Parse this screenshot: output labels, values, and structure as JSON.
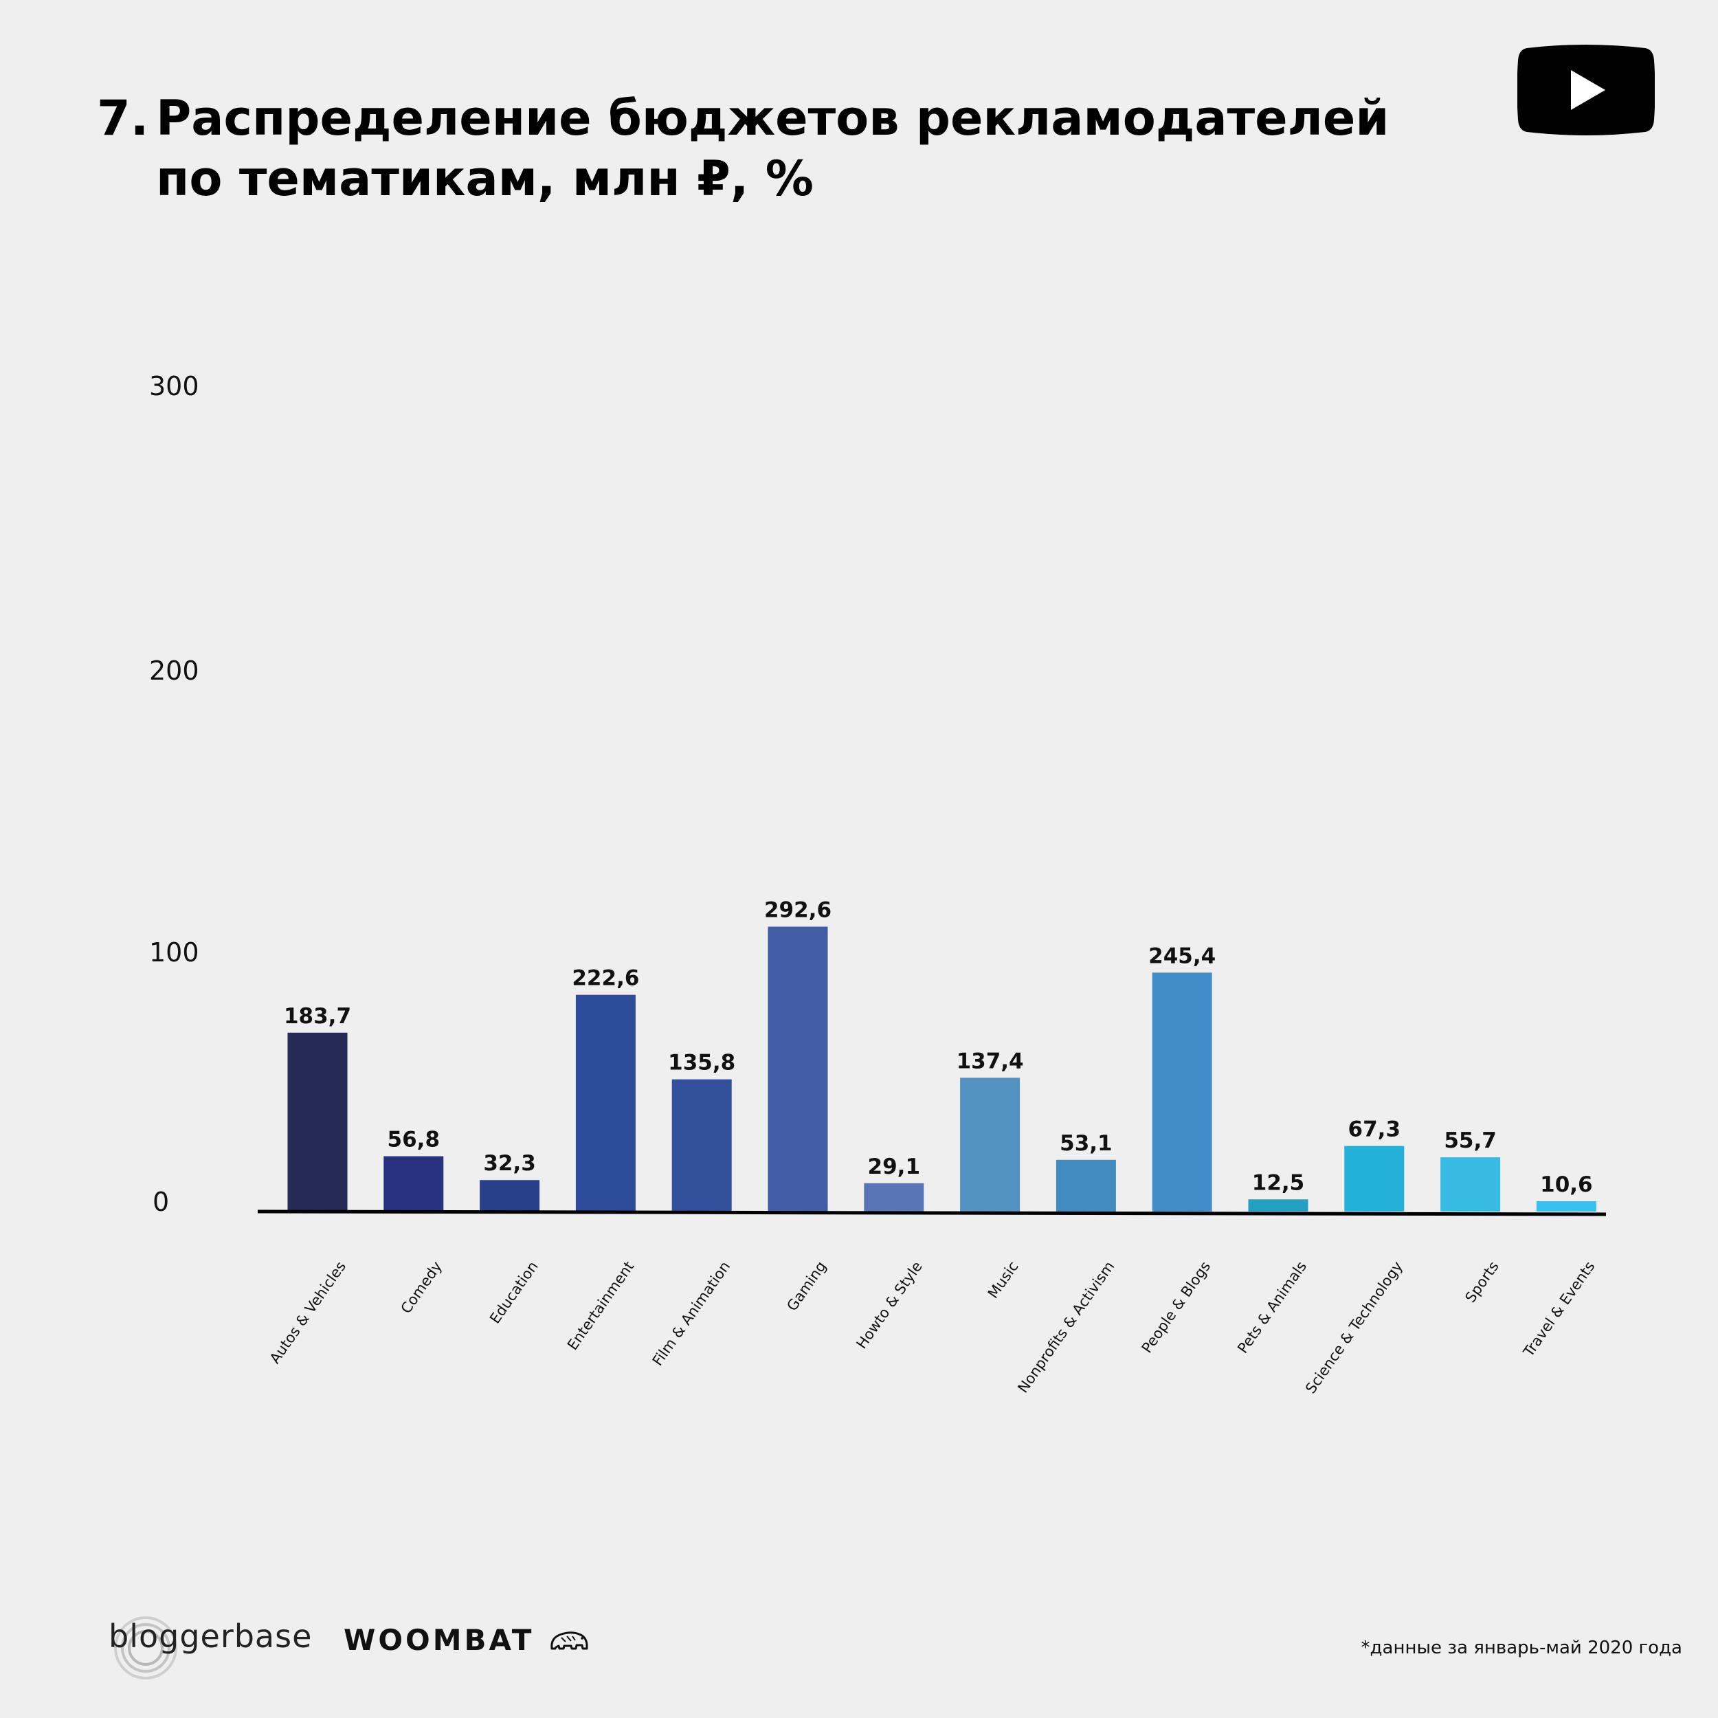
{
  "title": {
    "number": "7.",
    "line1": "Распределение бюджетов рекламодателей",
    "line2": "по тематикам, млн ₽, %"
  },
  "icons": {
    "top_right": "youtube-play-icon",
    "footer_logo_1": "bloggerbase-logo",
    "footer_logo_2": "woombat-logo",
    "woombat_mark": "wombat-animal-icon"
  },
  "logos": {
    "bloggerbase": "bloggerbase",
    "woombat": "WOOMBAT"
  },
  "footnote": "*данные за январь-май 2020 года",
  "chart_data": {
    "type": "bar",
    "title": "7. Распределение бюджетов рекламодателей по тематикам, млн ₽, %",
    "xlabel": "",
    "ylabel": "",
    "ylim": [
      0,
      300
    ],
    "yticks": [
      0,
      100,
      200,
      300
    ],
    "ytick_labels": [
      "0",
      "100",
      "200",
      "300"
    ],
    "grid": false,
    "legend": "none",
    "categories": [
      "Autos & Vehicles",
      "Comedy",
      "Education",
      "Entertainment",
      "Film & Animation",
      "Gaming",
      "Howto & Style",
      "Music",
      "Nonprofits & Activism",
      "People & Blogs",
      "Pets & Animals",
      "Science & Technology",
      "Sports",
      "Travel & Events"
    ],
    "values": [
      183.7,
      56.8,
      32.3,
      222.6,
      135.8,
      292.6,
      29.1,
      137.4,
      53.1,
      245.4,
      12.5,
      67.3,
      55.7,
      10.6
    ],
    "value_labels": [
      "183,7",
      "56,8",
      "32,3",
      "222,6",
      "135,8",
      "292,6",
      "29,1",
      "137,4",
      "53,1",
      "245,4",
      "12,5",
      "67,3",
      "55,7",
      "10,6"
    ],
    "colors": [
      "#252b56",
      "#27337e",
      "#283f8a",
      "#2d4d9a",
      "#33509c",
      "#435ca6",
      "#5876b7",
      "#5293c2",
      "#428bc0",
      "#428cca",
      "#239fc2",
      "#23b1da",
      "#38bbe2",
      "#37c0f0"
    ]
  }
}
